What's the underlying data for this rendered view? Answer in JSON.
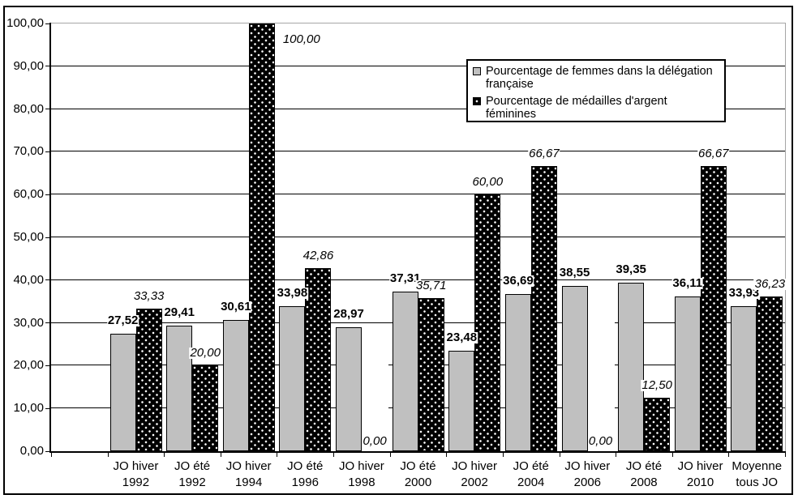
{
  "chart_data": {
    "type": "bar",
    "title": "",
    "xlabel": "",
    "ylabel": "",
    "categories": [
      "JO hiver 1992",
      "JO été 1992",
      "JO hiver 1994",
      "JO été 1996",
      "JO hiver 1998",
      "JO été 2000",
      "JO hiver 2002",
      "JO été 2004",
      "JO hiver 2006",
      "JO été 2008",
      "JO hiver 2010",
      "Moyenne tous JO"
    ],
    "category_lines": [
      [
        "JO hiver",
        "1992"
      ],
      [
        "JO été",
        "1992"
      ],
      [
        "JO hiver",
        "1994"
      ],
      [
        "JO été",
        "1996"
      ],
      [
        "JO hiver",
        "1998"
      ],
      [
        "JO été",
        "2000"
      ],
      [
        "JO hiver",
        "2002"
      ],
      [
        "JO été",
        "2004"
      ],
      [
        "JO hiver",
        "2006"
      ],
      [
        "JO été",
        "2008"
      ],
      [
        "JO hiver",
        "2010"
      ],
      [
        "Moyenne",
        "tous JO"
      ]
    ],
    "series": [
      {
        "name": "Pourcentage de femmes dans la délégation française",
        "values": [
          27.52,
          29.41,
          30.61,
          33.98,
          28.97,
          37.31,
          23.48,
          36.69,
          38.55,
          39.35,
          36.11,
          33.93
        ],
        "labels": [
          "27,52",
          "29,41",
          "30,61",
          "33,98",
          "28,97",
          "37,31",
          "23,48",
          "36,69",
          "38,55",
          "39,35",
          "36,11",
          "33,93"
        ],
        "color": "#c0c0c0",
        "pattern": "solid",
        "label_style": "bold"
      },
      {
        "name": "Pourcentage de médailles d'argent féminines",
        "values": [
          33.33,
          20.0,
          100.0,
          42.86,
          0.0,
          35.71,
          60.0,
          66.67,
          0.0,
          12.5,
          66.67,
          36.23
        ],
        "labels": [
          "33,33",
          "20,00",
          "100,00",
          "42,86",
          "0,00",
          "35,71",
          "60,00",
          "66,67",
          "0,00",
          "12,50",
          "66,67",
          "36,23"
        ],
        "color": "#000000",
        "pattern": "white-dots-on-black",
        "label_style": "italic"
      }
    ],
    "ylim": [
      0,
      100
    ],
    "ytick_step": 10,
    "ytick_labels": [
      "0,00",
      "10,00",
      "20,00",
      "30,00",
      "40,00",
      "50,00",
      "60,00",
      "70,00",
      "80,00",
      "90,00",
      "100,00"
    ],
    "grid": true,
    "gridline_color": "#000000",
    "plot_border_color": "#a6a6a6",
    "background": "#ffffff",
    "legend_position": "top-right-inside",
    "leading_empty_slot": true
  }
}
